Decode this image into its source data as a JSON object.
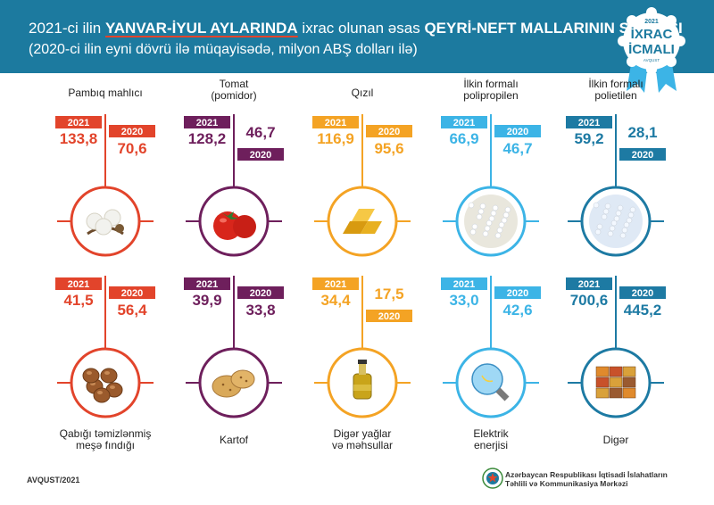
{
  "header": {
    "line1_a": "2021-ci ilin ",
    "line1_b": "YANVAR-İYUL AYLARINDA",
    "line1_c": " ixrac olunan əsas ",
    "line1_d": "QEYRİ-NEFT MALLARININ SİYAHISI",
    "line2": "(2020-ci ilin eyni dövrü ilə müqayisədə, milyon ABŞ dolları ilə)"
  },
  "badge": {
    "year": "2021",
    "line1": "İXRAC",
    "line2": "İCMALI",
    "month": "AVQUST"
  },
  "footer": {
    "code": "AVQUST/2021",
    "org_line1": "Azərbaycan Respublikası İqtisadi İslahatların",
    "org_line2": "Təhlili və Kommunikasiya Mərkəzi"
  },
  "colors": {
    "header": "#1c7a9f",
    "red": "#e2442b",
    "purple": "#6e1f5c",
    "orange": "#f4a324",
    "lightblue": "#3cb4e6",
    "darkblue": "#1d7aa3"
  },
  "chart_data": {
    "type": "table",
    "title": "2021-ci ilin YANVAR-İYUL AYLARINDA ixrac olunan əsas QEYRİ-NEFT MALLARININ SİYAHISI",
    "subtitle": "(2020-ci ilin eyni dövrü ilə müqayisədə, milyon ABŞ dolları ilə)",
    "series": [
      {
        "name": "2021"
      },
      {
        "name": "2020"
      }
    ],
    "items": [
      {
        "name": "Pambıq mahlıcı",
        "name_pos": "top",
        "v2021": "133,8",
        "v2020": "70,6",
        "color": "#e2442b",
        "icon": "cotton-icon"
      },
      {
        "name": "Tomat\n(pomidor)",
        "name_pos": "top",
        "v2021": "128,2",
        "v2020": "46,7",
        "color": "#6e1f5c",
        "icon": "tomato-icon"
      },
      {
        "name": "Qızıl",
        "name_pos": "top",
        "v2021": "116,9",
        "v2020": "95,6",
        "color": "#f4a324",
        "icon": "gold-icon"
      },
      {
        "name": "İlkin formalı\npolipropilen",
        "name_pos": "top",
        "v2021": "66,9",
        "v2020": "46,7",
        "color": "#3cb4e6",
        "icon": "polypropylene-icon"
      },
      {
        "name": "İlkin formalı\npolietilen",
        "name_pos": "top",
        "v2021": "59,2",
        "v2020": "28,1",
        "color": "#1d7aa3",
        "icon": "polyethylene-icon"
      },
      {
        "name": "Qabığı təmizlənmiş\nmeşə fındığı",
        "name_pos": "bottom",
        "v2021": "41,5",
        "v2020": "56,4",
        "color": "#e2442b",
        "icon": "hazelnut-icon"
      },
      {
        "name": "Kartof",
        "name_pos": "bottom",
        "v2021": "39,9",
        "v2020": "33,8",
        "color": "#6e1f5c",
        "icon": "potato-icon"
      },
      {
        "name": "Digər yağlar\nvə məhsullar",
        "name_pos": "bottom",
        "v2021": "34,4",
        "v2020": "17,5",
        "color": "#f4a324",
        "icon": "oil-bottle-icon"
      },
      {
        "name": "Elektrik\nenerjisi",
        "name_pos": "bottom",
        "v2021": "33,0",
        "v2020": "42,6",
        "color": "#3cb4e6",
        "icon": "light-bulb-icon"
      },
      {
        "name": "Digər",
        "name_pos": "bottom",
        "v2021": "700,6",
        "v2020": "445,2",
        "color": "#1d7aa3",
        "icon": "containers-icon"
      }
    ]
  }
}
